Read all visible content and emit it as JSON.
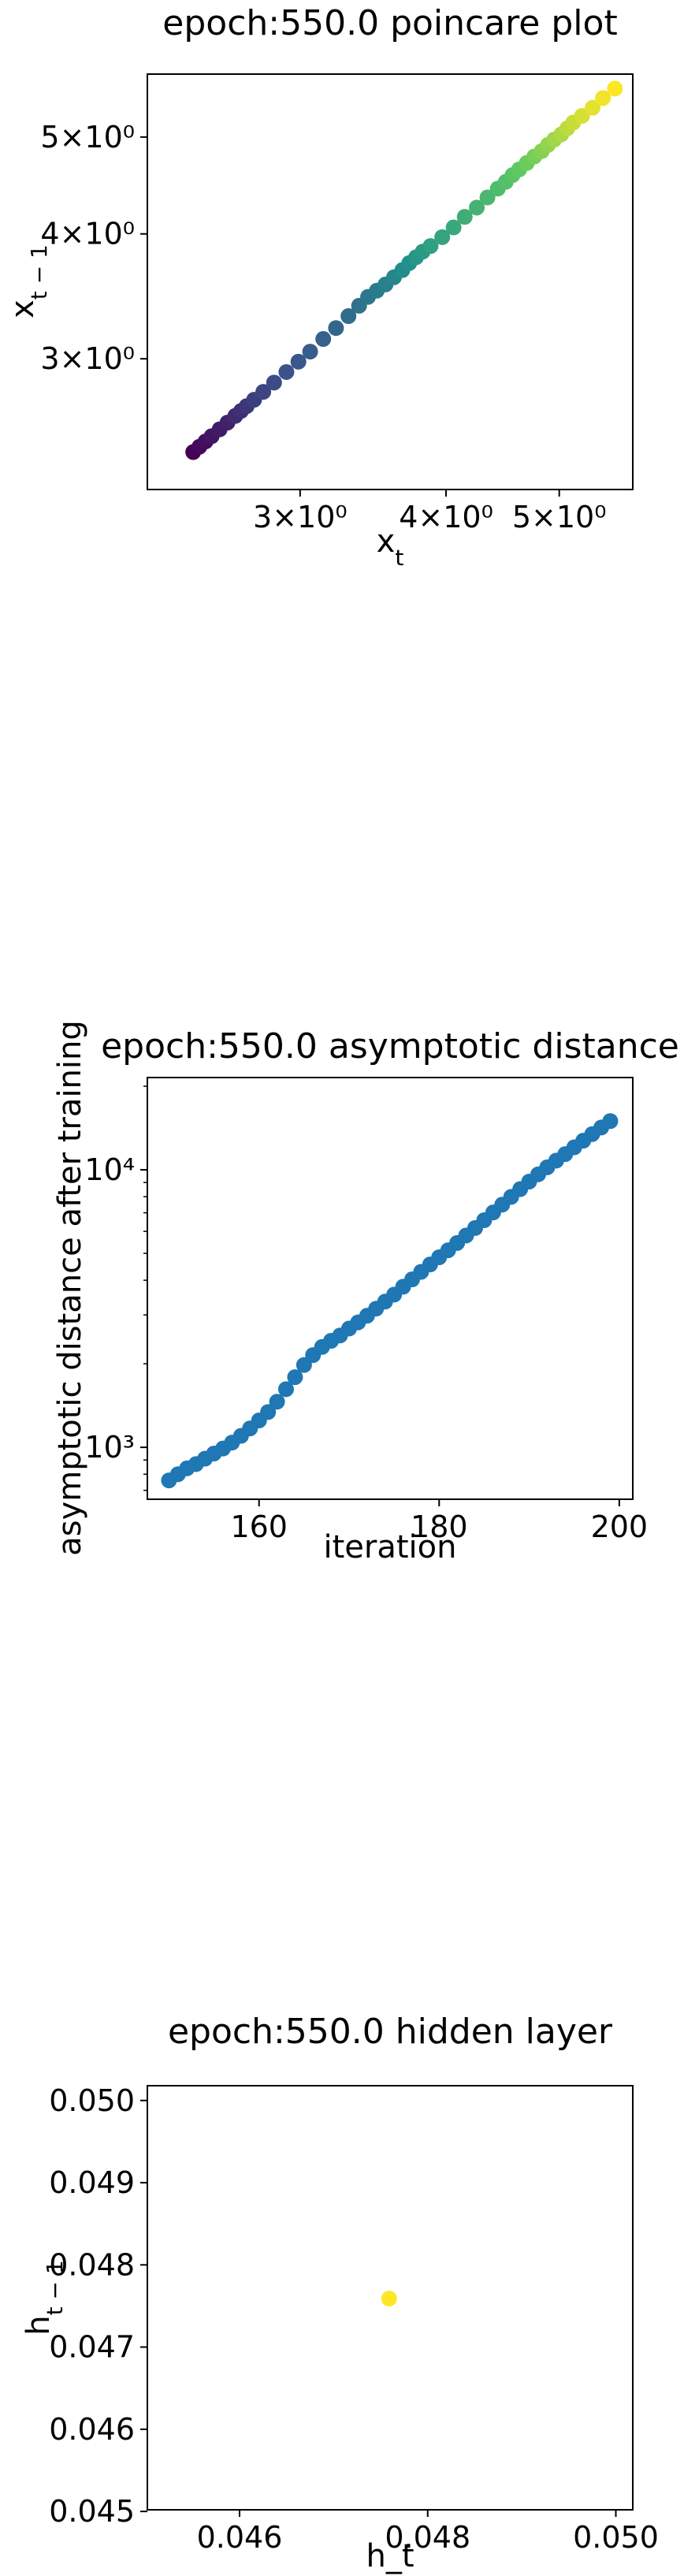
{
  "charts": [
    {
      "type": "scatter",
      "title": "epoch:550.0 poincare plot",
      "xlabel": "x_t",
      "ylabel": "x_{t-1}",
      "xscale": "log",
      "yscale": "log",
      "xlim": [
        2.22,
        5.78
      ],
      "ylim": [
        2.22,
        5.78
      ],
      "xticks": [
        {
          "value": 3,
          "label": "3×10⁰"
        },
        {
          "value": 4,
          "label": "4×10⁰"
        },
        {
          "value": 5,
          "label": "5×10⁰"
        }
      ],
      "yticks": [
        {
          "value": 3,
          "label": "3×10⁰"
        },
        {
          "value": 4,
          "label": "4×10⁰"
        },
        {
          "value": 5,
          "label": "5×10⁰"
        }
      ],
      "colormap": "viridis",
      "points": [
        [
          2.43,
          2.42
        ],
        [
          2.46,
          2.45
        ],
        [
          2.49,
          2.48
        ],
        [
          2.52,
          2.51
        ],
        [
          2.56,
          2.55
        ],
        [
          2.6,
          2.59
        ],
        [
          2.64,
          2.63
        ],
        [
          2.67,
          2.66
        ],
        [
          2.7,
          2.69
        ],
        [
          2.74,
          2.73
        ],
        [
          2.79,
          2.78
        ],
        [
          2.85,
          2.84
        ],
        [
          2.92,
          2.91
        ],
        [
          2.99,
          2.98
        ],
        [
          3.06,
          3.05
        ],
        [
          3.14,
          3.14
        ],
        [
          3.22,
          3.22
        ],
        [
          3.3,
          3.31
        ],
        [
          3.37,
          3.39
        ],
        [
          3.43,
          3.46
        ],
        [
          3.49,
          3.51
        ],
        [
          3.55,
          3.56
        ],
        [
          3.61,
          3.62
        ],
        [
          3.67,
          3.68
        ],
        [
          3.72,
          3.74
        ],
        [
          3.77,
          3.79
        ],
        [
          3.82,
          3.84
        ],
        [
          3.88,
          3.89
        ],
        [
          3.97,
          3.97
        ],
        [
          4.06,
          4.06
        ],
        [
          4.15,
          4.16
        ],
        [
          4.25,
          4.25
        ],
        [
          4.34,
          4.35
        ],
        [
          4.43,
          4.44
        ],
        [
          4.5,
          4.51
        ],
        [
          4.56,
          4.58
        ],
        [
          4.62,
          4.64
        ],
        [
          4.69,
          4.71
        ],
        [
          4.76,
          4.78
        ],
        [
          4.83,
          4.84
        ],
        [
          4.89,
          4.91
        ],
        [
          4.95,
          4.97
        ],
        [
          5.02,
          5.03
        ],
        [
          5.08,
          5.1
        ],
        [
          5.14,
          5.17
        ],
        [
          5.23,
          5.25
        ],
        [
          5.34,
          5.35
        ],
        [
          5.45,
          5.47
        ],
        [
          5.58,
          5.59
        ]
      ]
    },
    {
      "type": "scatter",
      "title": "epoch:550.0 asymptotic distance",
      "xlabel": "iteration",
      "ylabel": "asymptotic distance after training",
      "xscale": "linear",
      "yscale": "log",
      "xlim": [
        147.6,
        201.5
      ],
      "ylim": [
        650,
        21500
      ],
      "xticks": [
        {
          "value": 160,
          "label": "160"
        },
        {
          "value": 180,
          "label": "180"
        },
        {
          "value": 200,
          "label": "200"
        }
      ],
      "yticks": [
        {
          "value": 1000,
          "label": "10³"
        },
        {
          "value": 10000,
          "label": "10⁴"
        }
      ],
      "color": "#1f77b4",
      "x": [
        150,
        151,
        152,
        153,
        154,
        155,
        156,
        157,
        158,
        159,
        160,
        161,
        162,
        163,
        164,
        165,
        166,
        167,
        168,
        169,
        170,
        171,
        172,
        173,
        174,
        175,
        176,
        177,
        178,
        179,
        180,
        181,
        182,
        183,
        184,
        185,
        186,
        187,
        188,
        189,
        190,
        191,
        192,
        193,
        194,
        195,
        196,
        197,
        198,
        199
      ],
      "y": [
        760,
        800,
        840,
        870,
        910,
        950,
        990,
        1040,
        1100,
        1170,
        1250,
        1340,
        1460,
        1620,
        1790,
        1980,
        2150,
        2300,
        2420,
        2530,
        2680,
        2820,
        2980,
        3160,
        3350,
        3550,
        3790,
        4030,
        4290,
        4560,
        4840,
        5130,
        5450,
        5800,
        6170,
        6580,
        7020,
        7490,
        7990,
        8520,
        9070,
        9630,
        10210,
        10790,
        11390,
        12050,
        12730,
        13450,
        14200,
        14980
      ]
    },
    {
      "type": "scatter",
      "title": "epoch:550.0 hidden layer",
      "xlabel": "h_t",
      "ylabel": "h_{t-1}",
      "xscale": "linear",
      "yscale": "linear",
      "xlim": [
        0.04502,
        0.05018
      ],
      "ylim": [
        0.04502,
        0.05018
      ],
      "xticks": [
        {
          "value": 0.046,
          "label": "0.046"
        },
        {
          "value": 0.048,
          "label": "0.048"
        },
        {
          "value": 0.05,
          "label": "0.050"
        }
      ],
      "yticks": [
        {
          "value": 0.045,
          "label": "0.045"
        },
        {
          "value": 0.046,
          "label": "0.046"
        },
        {
          "value": 0.047,
          "label": "0.047"
        },
        {
          "value": 0.048,
          "label": "0.048"
        },
        {
          "value": 0.049,
          "label": "0.049"
        },
        {
          "value": 0.05,
          "label": "0.050"
        }
      ],
      "color": "#fde725",
      "points": [
        [
          0.04759,
          0.04759
        ]
      ]
    }
  ]
}
